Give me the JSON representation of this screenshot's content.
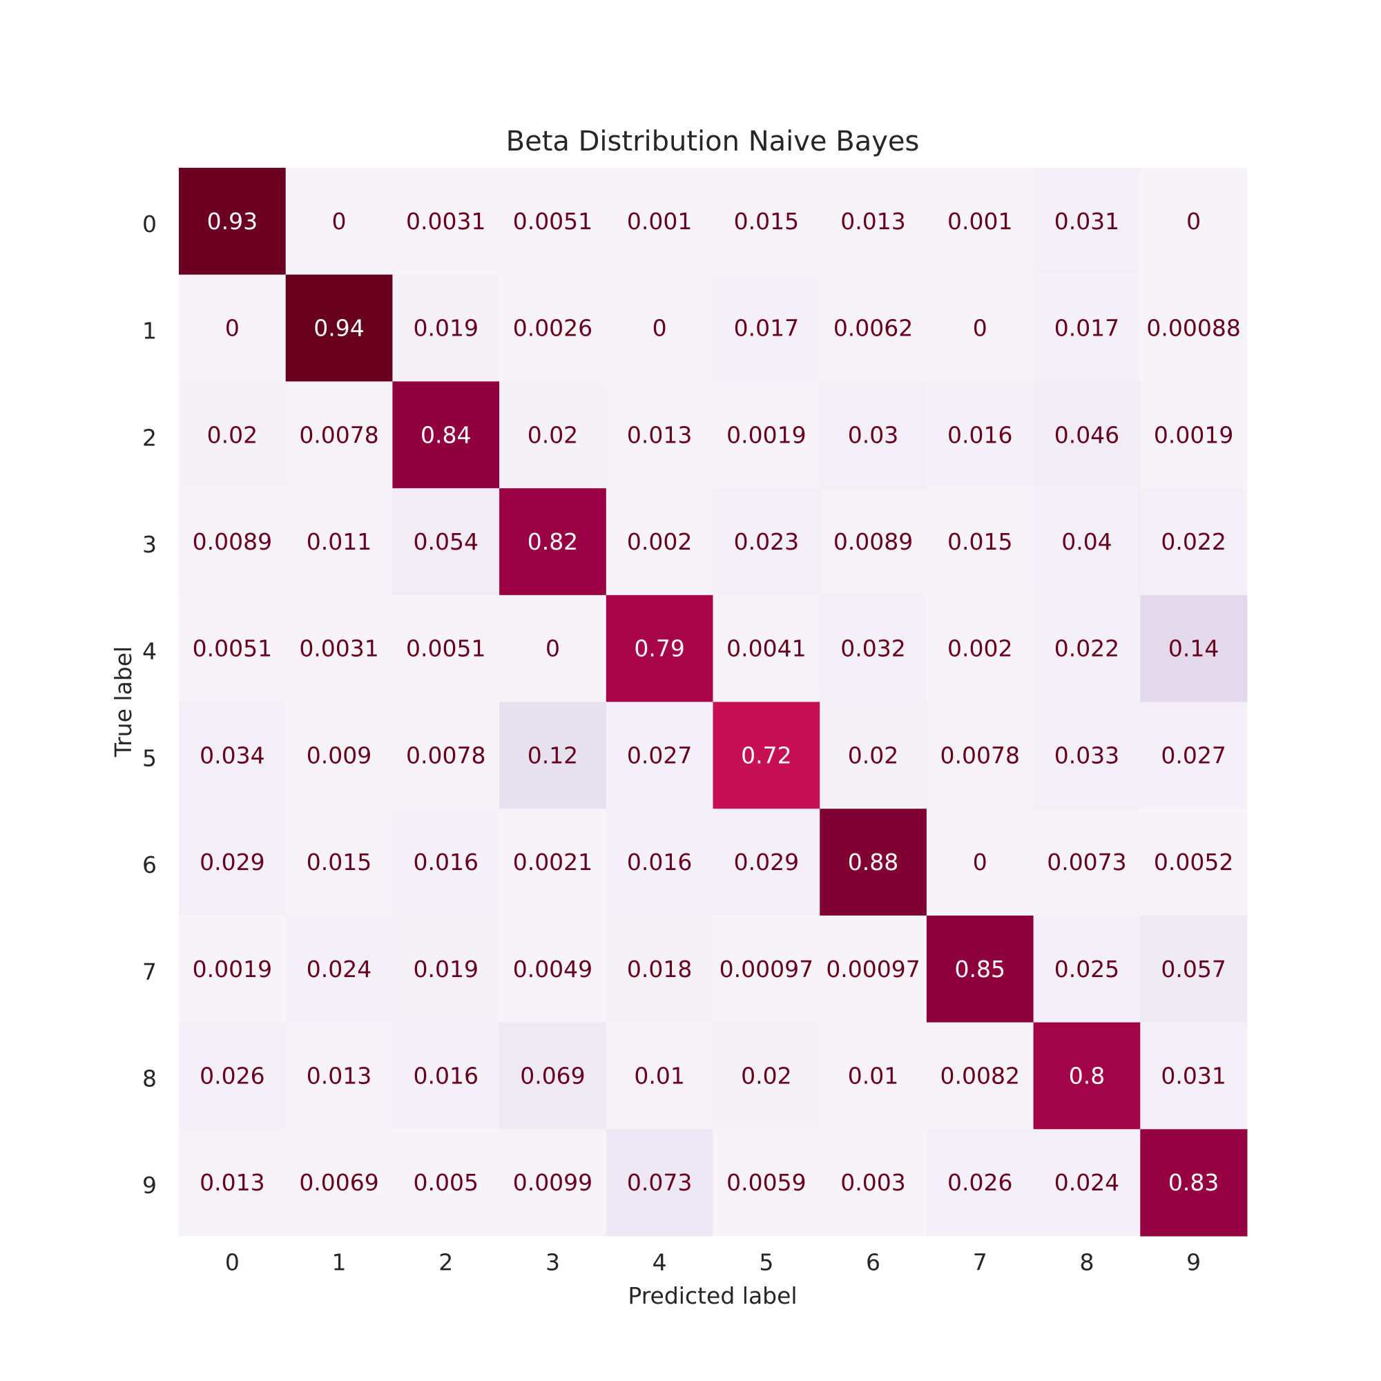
{
  "chart_data": {
    "type": "heatmap",
    "title": "Beta Distribution Naive Bayes",
    "xlabel": "Predicted label",
    "ylabel": "True label",
    "x_categories": [
      "0",
      "1",
      "2",
      "3",
      "4",
      "5",
      "6",
      "7",
      "8",
      "9"
    ],
    "y_categories": [
      "0",
      "1",
      "2",
      "3",
      "4",
      "5",
      "6",
      "7",
      "8",
      "9"
    ],
    "colormap": "PuRd",
    "value_range": [
      0,
      0.94
    ],
    "colorbar": false,
    "grid": false,
    "values": [
      [
        "0.93",
        "0",
        "0.0031",
        "0.0051",
        "0.001",
        "0.015",
        "0.013",
        "0.001",
        "0.031",
        "0"
      ],
      [
        "0",
        "0.94",
        "0.019",
        "0.0026",
        "0",
        "0.017",
        "0.0062",
        "0",
        "0.017",
        "0.00088"
      ],
      [
        "0.02",
        "0.0078",
        "0.84",
        "0.02",
        "0.013",
        "0.0019",
        "0.03",
        "0.016",
        "0.046",
        "0.0019"
      ],
      [
        "0.0089",
        "0.011",
        "0.054",
        "0.82",
        "0.002",
        "0.023",
        "0.0089",
        "0.015",
        "0.04",
        "0.022"
      ],
      [
        "0.0051",
        "0.0031",
        "0.0051",
        "0",
        "0.79",
        "0.0041",
        "0.032",
        "0.002",
        "0.022",
        "0.14"
      ],
      [
        "0.034",
        "0.009",
        "0.0078",
        "0.12",
        "0.027",
        "0.72",
        "0.02",
        "0.0078",
        "0.033",
        "0.027"
      ],
      [
        "0.029",
        "0.015",
        "0.016",
        "0.0021",
        "0.016",
        "0.029",
        "0.88",
        "0",
        "0.0073",
        "0.0052"
      ],
      [
        "0.0019",
        "0.024",
        "0.019",
        "0.0049",
        "0.018",
        "0.00097",
        "0.00097",
        "0.85",
        "0.025",
        "0.057"
      ],
      [
        "0.026",
        "0.013",
        "0.016",
        "0.069",
        "0.01",
        "0.02",
        "0.01",
        "0.0082",
        "0.8",
        "0.031"
      ],
      [
        "0.013",
        "0.0069",
        "0.005",
        "0.0099",
        "0.073",
        "0.0059",
        "0.003",
        "0.026",
        "0.024",
        "0.83"
      ]
    ]
  }
}
